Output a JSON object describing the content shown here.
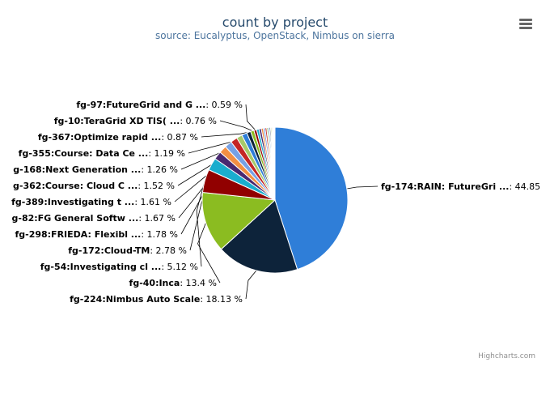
{
  "title": "count by project",
  "subtitle": "source: Eucalyptus, OpenStack, Nimbus on sierra",
  "credits": "Highcharts.com",
  "menu_icon": "hamburger-menu-icon",
  "chart_data": {
    "type": "pie",
    "title": "count by project",
    "subtitle": "source: Eucalyptus, OpenStack, Nimbus on sierra",
    "legend": "none",
    "slices": [
      {
        "name": "fg-174:RAIN: FutureGri ...",
        "value": 44.85,
        "label": "44.85",
        "color": "#2f7ed8",
        "labeled": true
      },
      {
        "name": "fg-224:Nimbus Auto Scale",
        "value": 18.13,
        "label": "18.13 %",
        "color": "#0d233a",
        "labeled": true
      },
      {
        "name": "fg-40:Inca",
        "value": 13.4,
        "label": "13.4 %",
        "color": "#8bbc21",
        "labeled": true
      },
      {
        "name": "fg-54:Investigating cl ...",
        "value": 5.12,
        "label": "5.12 %",
        "color": "#910000",
        "labeled": true
      },
      {
        "name": "fg-172:Cloud-TM",
        "value": 2.78,
        "label": "2.78 %",
        "color": "#1aadce",
        "labeled": true
      },
      {
        "name": "fg-298:FRIEDA: Flexibl ...",
        "value": 1.78,
        "label": "1.78 %",
        "color": "#492970",
        "labeled": true
      },
      {
        "name": "g-82:FG General Softw ...",
        "value": 1.67,
        "label": "1.67 %",
        "color": "#f28f43",
        "labeled": true
      },
      {
        "name": "fg-389:Investigating t ...",
        "value": 1.61,
        "label": "1.61 %",
        "color": "#77a1e5",
        "labeled": true
      },
      {
        "name": "g-362:Course: Cloud C ...",
        "value": 1.52,
        "label": "1.52 %",
        "color": "#c42525",
        "labeled": true
      },
      {
        "name": "g-168:Next Generation ...",
        "value": 1.26,
        "label": "1.26 %",
        "color": "#a6c96a",
        "labeled": true
      },
      {
        "name": "fg-355:Course: Data Ce ...",
        "value": 1.19,
        "label": "1.19 %",
        "color": "#2f7ed8",
        "labeled": true
      },
      {
        "name": "fg-367:Optimize rapid ...",
        "value": 0.87,
        "label": "0.87 %",
        "color": "#0d233a",
        "labeled": true
      },
      {
        "name": "fg-10:TeraGrid XD TIS( ...",
        "value": 0.76,
        "label": "0.76 %",
        "color": "#8bbc21",
        "labeled": true
      },
      {
        "name": "fg-97:FutureGrid and G ...",
        "value": 0.59,
        "label": "0.59 %",
        "color": "#910000",
        "labeled": true
      },
      {
        "name": "",
        "value": 0.55,
        "label": "",
        "color": "#1aadce",
        "labeled": false
      },
      {
        "name": "",
        "value": 0.5,
        "label": "",
        "color": "#492970",
        "labeled": false
      },
      {
        "name": "",
        "value": 0.45,
        "label": "",
        "color": "#f28f43",
        "labeled": false
      },
      {
        "name": "",
        "value": 0.4,
        "label": "",
        "color": "#77a1e5",
        "labeled": false
      },
      {
        "name": "",
        "value": 0.36,
        "label": "",
        "color": "#c42525",
        "labeled": false
      },
      {
        "name": "",
        "value": 0.32,
        "label": "",
        "color": "#a6c96a",
        "labeled": false
      },
      {
        "name": "",
        "value": 0.28,
        "label": "",
        "color": "#2f7ed8",
        "labeled": false
      },
      {
        "name": "",
        "value": 0.25,
        "label": "",
        "color": "#0d233a",
        "labeled": false
      },
      {
        "name": "",
        "value": 0.22,
        "label": "",
        "color": "#8bbc21",
        "labeled": false
      },
      {
        "name": "",
        "value": 0.19,
        "label": "",
        "color": "#910000",
        "labeled": false
      },
      {
        "name": "",
        "value": 0.17,
        "label": "",
        "color": "#1aadce",
        "labeled": false
      },
      {
        "name": "",
        "value": 0.15,
        "label": "",
        "color": "#492970",
        "labeled": false
      },
      {
        "name": "",
        "value": 0.13,
        "label": "",
        "color": "#f28f43",
        "labeled": false
      },
      {
        "name": "",
        "value": 0.11,
        "label": "",
        "color": "#77a1e5",
        "labeled": false
      }
    ]
  }
}
